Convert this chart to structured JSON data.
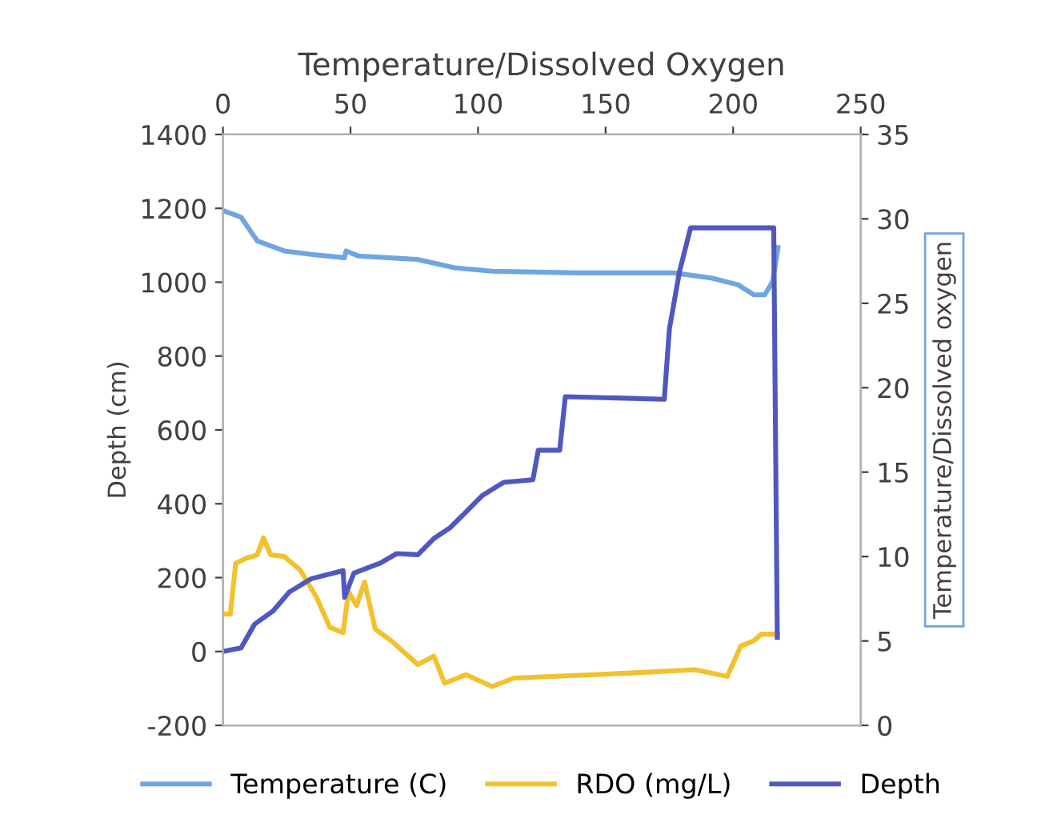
{
  "chart_data": {
    "type": "line",
    "xlabel": "Temperature/Dissolved Oxygen",
    "ylabel": "Depth (cm)",
    "y2label": "Temperature/Dissolved oxygen",
    "xlim": [
      0,
      250
    ],
    "xticks": [
      0,
      50,
      100,
      150,
      200,
      250
    ],
    "ylim": [
      -200,
      1400
    ],
    "yticks": [
      -200,
      0,
      200,
      400,
      600,
      800,
      1000,
      1200,
      1400
    ],
    "y2lim": [
      0,
      35
    ],
    "y2ticks": [
      0,
      5,
      10,
      15,
      20,
      25,
      30,
      35
    ],
    "legend": "bottom",
    "grid": false,
    "marker": "none",
    "line_style": "solid",
    "series": [
      {
        "name": "Temperature (C)",
        "color": "#6fa6e2",
        "axis": "y2",
        "x": [
          0,
          7.1,
          13.4,
          24,
          34.6,
          47.6,
          48.3,
          53.2,
          76.2,
          90.9,
          105.5,
          139,
          176.7,
          191.4,
          201.9,
          208.2,
          212.4,
          215.5,
          217.6
        ],
        "values": [
          30.5,
          30.1,
          28.7,
          28.1,
          27.9,
          27.7,
          28.1,
          27.8,
          27.6,
          27.1,
          26.9,
          26.8,
          26.8,
          26.5,
          26.1,
          25.5,
          25.5,
          26.3,
          28.3
        ]
      },
      {
        "name": "RDO (mg/L)",
        "color": "#f2c12e",
        "axis": "y2",
        "x": [
          0.8,
          2.9,
          5,
          9.2,
          13.4,
          15.9,
          18.7,
          24,
          30.3,
          36.6,
          41.9,
          47.1,
          49.2,
          52.4,
          55.5,
          59.7,
          66,
          76.4,
          82.7,
          86.9,
          95.3,
          105.5,
          114,
          160,
          185,
          197.7,
          203,
          208,
          211,
          217.5
        ],
        "values": [
          6.6,
          6.6,
          9.6,
          9.9,
          10.1,
          11.1,
          10.1,
          10.0,
          9.2,
          7.6,
          5.8,
          5.5,
          7.9,
          7.1,
          8.5,
          5.7,
          5.0,
          3.6,
          4.1,
          2.5,
          3.0,
          2.3,
          2.8,
          3.1,
          3.3,
          2.9,
          4.7,
          5.0,
          5.4,
          5.4
        ]
      },
      {
        "name": "Depth",
        "color": "#5058c0",
        "x": [
          0,
          7.1,
          12.4,
          19.7,
          26,
          34.6,
          47.1,
          47.7,
          51.3,
          61.8,
          68.1,
          76.4,
          82.7,
          89,
          95.3,
          101.6,
          110,
          121.5,
          123.6,
          132,
          134.2,
          173,
          175,
          179,
          183.3,
          215.9,
          217.3
        ],
        "values": [
          0,
          10,
          74,
          110,
          161,
          197,
          219,
          147,
          212,
          240,
          265,
          262,
          306,
          335,
          378,
          422,
          458,
          465,
          545,
          545,
          690,
          683,
          873,
          1030,
          1147,
          1147,
          38
        ]
      }
    ]
  }
}
